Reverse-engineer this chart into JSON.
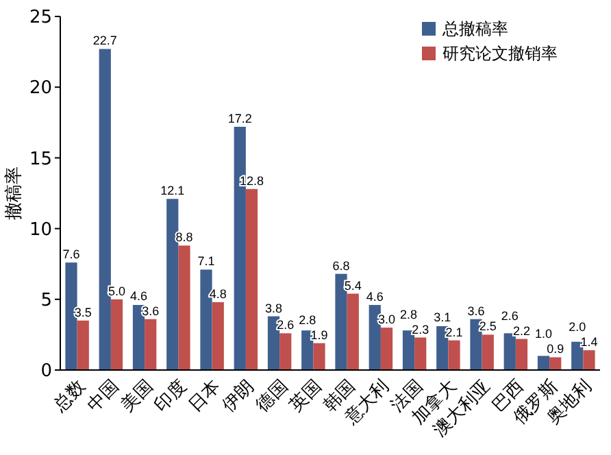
{
  "chart_data": {
    "type": "bar",
    "ylabel": "撤稿率",
    "categories": [
      "总数",
      "中国",
      "美国",
      "印度",
      "日本",
      "伊朗",
      "德国",
      "英国",
      "韩国",
      "意大利",
      "法国",
      "加拿大",
      "澳大利亚",
      "巴西",
      "俄罗斯",
      "奥地利"
    ],
    "series": [
      {
        "name": "总撤稿率",
        "color": "#3f5f8f",
        "values": [
          7.6,
          22.7,
          4.6,
          12.1,
          7.1,
          17.2,
          3.8,
          2.8,
          6.8,
          4.6,
          2.8,
          3.1,
          3.6,
          2.6,
          1.0,
          2.0
        ],
        "value_labels": [
          "7.6",
          "22.7",
          "4.6",
          "12.1",
          "7.1",
          "17.2",
          "3.8",
          "2.8",
          "6.8",
          "4.6",
          "2.8",
          "3.1",
          "3.6",
          "2.6",
          "1.0",
          "2.0"
        ]
      },
      {
        "name": "研究论文撤销率",
        "color": "#c0504d",
        "values": [
          3.5,
          5.0,
          3.6,
          8.8,
          4.8,
          12.8,
          2.6,
          1.9,
          5.4,
          3.0,
          2.3,
          2.1,
          2.5,
          2.2,
          0.9,
          1.4
        ],
        "value_labels": [
          "3.5",
          "5.0",
          "3.6",
          "8.8",
          "4.8",
          "12.8",
          "2.6",
          "1.9",
          "5.4",
          "3.0",
          "2.3",
          "2.1",
          "2.5",
          "2.2",
          "0.9",
          "1.4"
        ]
      }
    ],
    "ylim": [
      0,
      25
    ],
    "yticks": [
      0,
      5,
      10,
      15,
      20,
      25
    ],
    "legend": "top right",
    "grid": false
  }
}
